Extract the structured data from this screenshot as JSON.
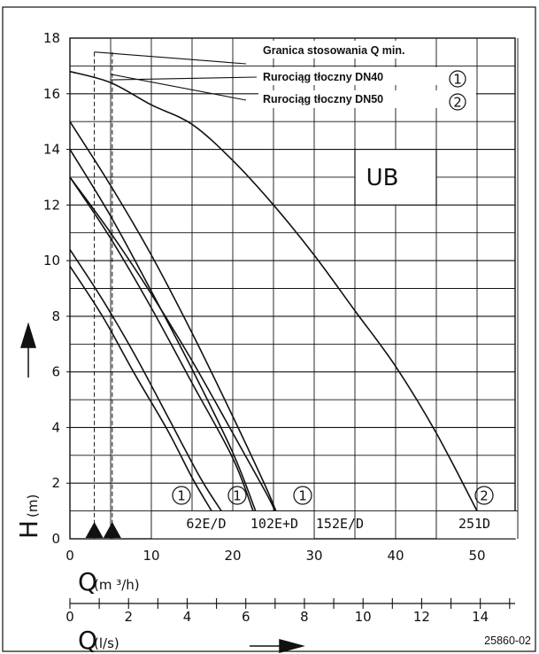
{
  "chart_data": {
    "type": "line",
    "ylabel": "H",
    "ylabel_unit": "(m)",
    "xlabel": "Q",
    "xlabel_unit": "(m ³/h)",
    "x2label": "Q",
    "x2label_unit": "(l/s)",
    "xlim": [
      0,
      55
    ],
    "ylim": [
      0,
      18
    ],
    "grid": true,
    "yticks": [
      "0",
      "2",
      "4",
      "6",
      "8",
      "10",
      "12",
      "14",
      "16",
      "18"
    ],
    "xticks": [
      "0",
      "10",
      "20",
      "30",
      "40",
      "50"
    ],
    "x2ticks": [
      "0",
      "2",
      "4",
      "6",
      "8",
      "10",
      "12",
      "14"
    ],
    "box_label": "UB",
    "legend": [
      {
        "text": "Granica stosowania Q min.",
        "marker": ""
      },
      {
        "text": "Rurociąg tłoczny DN40",
        "marker": "1"
      },
      {
        "text": "Rurociąg tłoczny DN50",
        "marker": "2"
      }
    ],
    "curve_labels": [
      "62E/D",
      "102E+D",
      "152E/D",
      "251D"
    ],
    "circle_markers": [
      "1",
      "1",
      "1",
      "2"
    ],
    "qmin_lines": [
      3.0,
      5.2
    ],
    "series": [
      {
        "points": [
          [
            0,
            10.4
          ],
          [
            4,
            8.6
          ],
          [
            8,
            6.6
          ],
          [
            12,
            4.4
          ],
          [
            16,
            2.2
          ],
          [
            18.6,
            1.0
          ]
        ]
      },
      {
        "points": [
          [
            0,
            9.8
          ],
          [
            4,
            8.0
          ],
          [
            8,
            5.9
          ],
          [
            12,
            3.9
          ],
          [
            15,
            2.2
          ],
          [
            17.4,
            1.0
          ]
        ]
      },
      {
        "points": [
          [
            0,
            14.0
          ],
          [
            5,
            11.6
          ],
          [
            10,
            8.9
          ],
          [
            15,
            6.1
          ],
          [
            20,
            3.1
          ],
          [
            22.8,
            1.0
          ]
        ]
      },
      {
        "points": [
          [
            0,
            13.0
          ],
          [
            5,
            10.8
          ],
          [
            10,
            8.3
          ],
          [
            15,
            5.6
          ],
          [
            20,
            2.9
          ],
          [
            22.5,
            1.0
          ]
        ]
      },
      {
        "points": [
          [
            0,
            15.0
          ],
          [
            5,
            12.7
          ],
          [
            10,
            10.2
          ],
          [
            15,
            7.4
          ],
          [
            20,
            4.4
          ],
          [
            24,
            1.9
          ],
          [
            25.3,
            1.0
          ]
        ]
      },
      {
        "points": [
          [
            0,
            13.0
          ],
          [
            5,
            11.0
          ],
          [
            10,
            8.8
          ],
          [
            15,
            6.4
          ],
          [
            20,
            3.8
          ],
          [
            24,
            1.7
          ],
          [
            25.2,
            1.0
          ]
        ]
      },
      {
        "points": [
          [
            0,
            16.8
          ],
          [
            5,
            16.4
          ],
          [
            10,
            15.6
          ],
          [
            15,
            14.9
          ],
          [
            20,
            13.6
          ],
          [
            25,
            12.0
          ],
          [
            30,
            10.2
          ],
          [
            35,
            8.2
          ],
          [
            40,
            6.2
          ],
          [
            45,
            3.8
          ],
          [
            50,
            1.0
          ]
        ]
      }
    ]
  },
  "image_code": "25860-02"
}
